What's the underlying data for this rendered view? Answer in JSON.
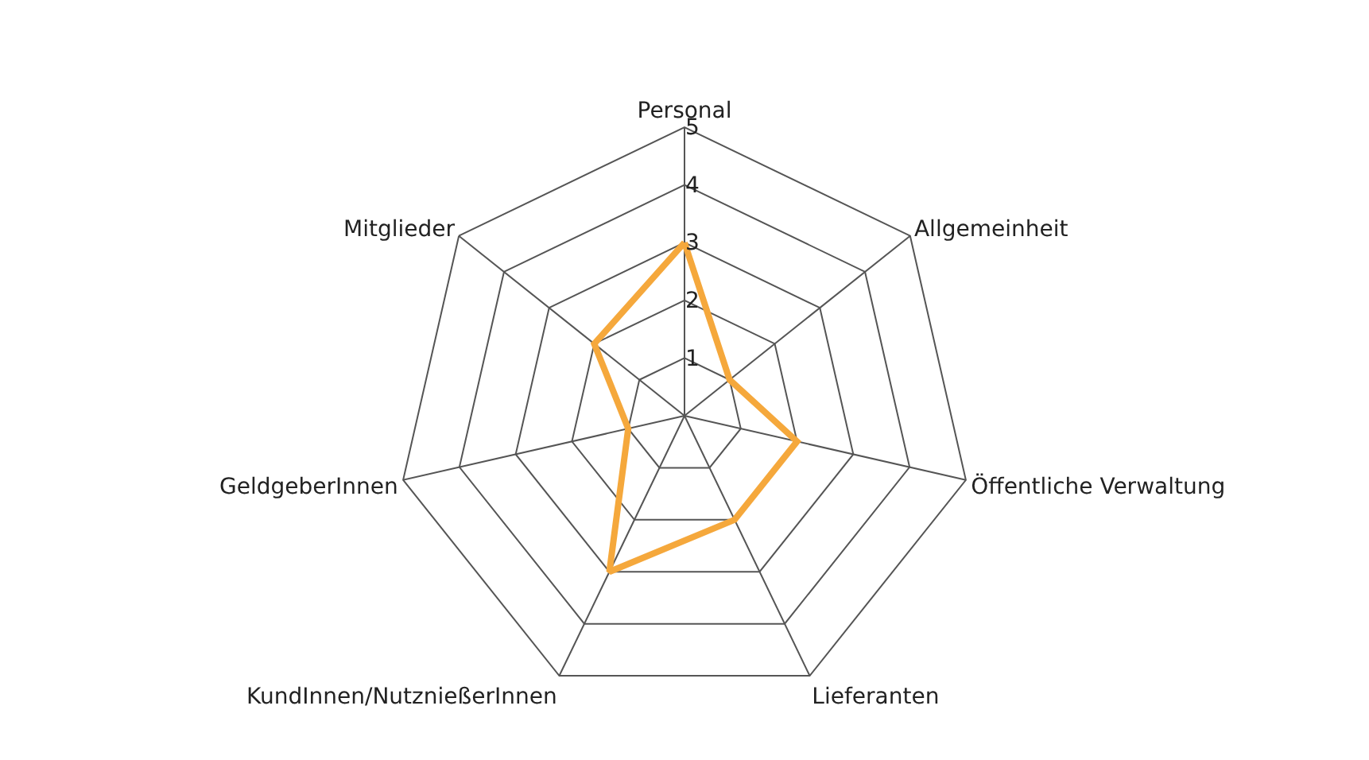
{
  "chart_data": {
    "type": "radar",
    "categories": [
      "Personal",
      "Allgemeinheit",
      "Öffentliche Verwaltung",
      "Lieferanten",
      "KundInnen/NutznießerInnen",
      "GeldgeberInnen",
      "Mitglieder"
    ],
    "series": [
      {
        "color": "#f5a83c",
        "values": [
          3,
          1,
          2,
          2,
          3,
          1,
          2
        ]
      }
    ],
    "ylim": [
      0,
      5
    ],
    "yticks": [
      1,
      2,
      3,
      4,
      5
    ],
    "grid": true,
    "marker": "none",
    "line_style": "solid"
  }
}
